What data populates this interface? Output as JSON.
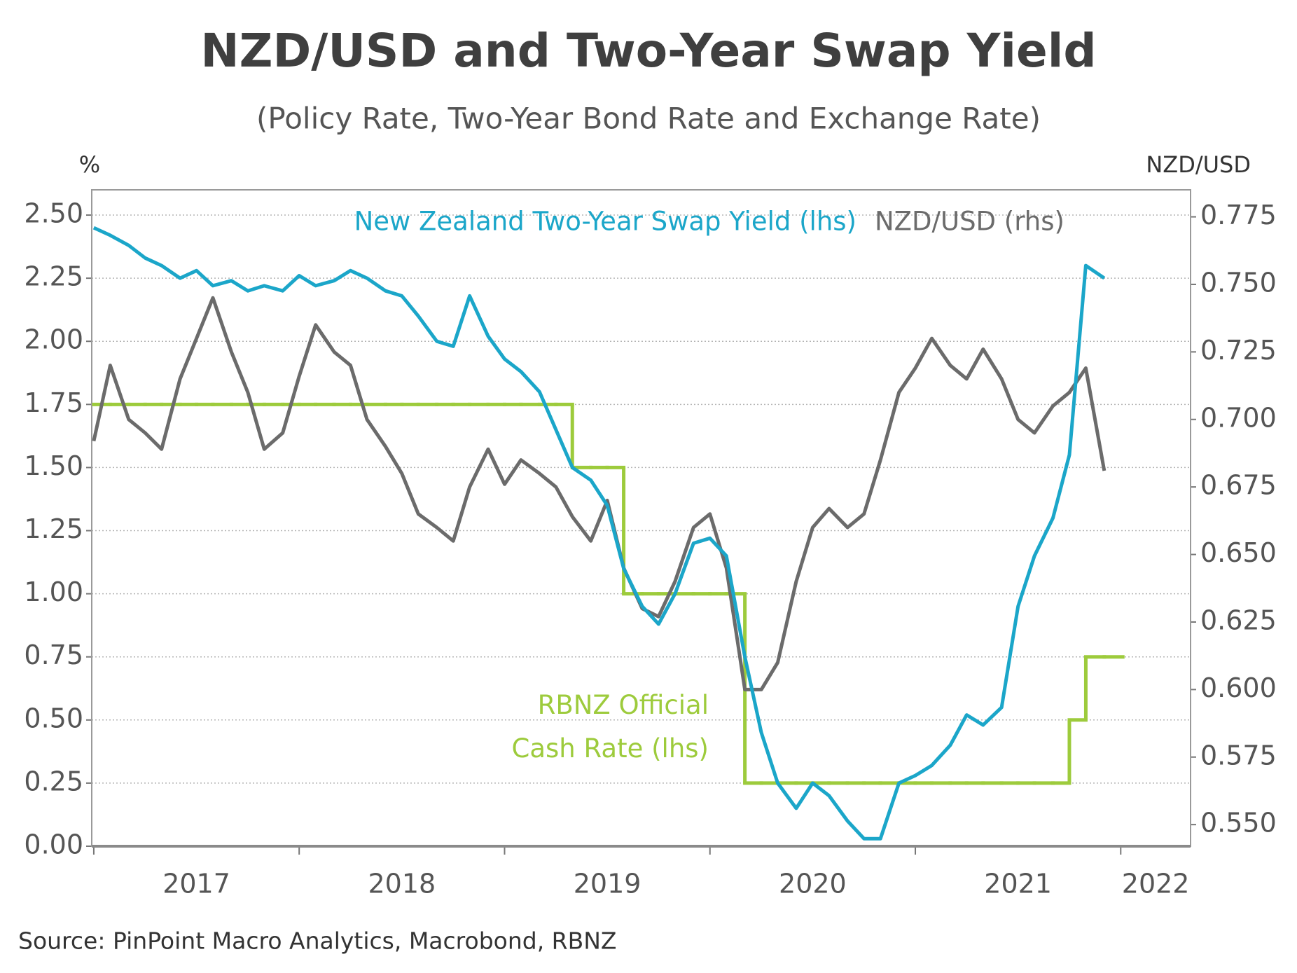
{
  "chart_data": {
    "type": "line",
    "title": "NZD/USD and Two-Year Swap Yield",
    "subtitle": "(Policy Rate, Two-Year Bond Rate and Exchange Rate)",
    "y_label": "%",
    "y2_label": "NZD/USD",
    "source": "Source: PinPoint Macro Analytics, Macrobond, RBNZ",
    "x": [
      2017,
      2017.08,
      2017.17,
      2017.25,
      2017.33,
      2017.42,
      2017.5,
      2017.58,
      2017.67,
      2017.75,
      2017.83,
      2017.92,
      2018,
      2018.08,
      2018.17,
      2018.25,
      2018.33,
      2018.42,
      2018.5,
      2018.58,
      2018.67,
      2018.75,
      2018.83,
      2018.92,
      2019,
      2019.08,
      2019.17,
      2019.25,
      2019.33,
      2019.42,
      2019.5,
      2019.58,
      2019.67,
      2019.75,
      2019.83,
      2019.92,
      2020,
      2020.08,
      2020.17,
      2020.25,
      2020.33,
      2020.42,
      2020.5,
      2020.58,
      2020.67,
      2020.75,
      2020.83,
      2020.92,
      2021,
      2021.08,
      2021.17,
      2021.25,
      2021.33,
      2021.42,
      2021.5,
      2021.58,
      2021.67,
      2021.75,
      2021.83,
      2021.92
    ],
    "xlim": [
      2016.99,
      2022.34
    ],
    "xticks": [
      2017,
      2018,
      2019,
      2020,
      2021,
      2022
    ],
    "ylim": [
      0,
      2.6
    ],
    "yticks": [
      {
        "value": 0,
        "label": "0.00"
      },
      0.25,
      {
        "value": 0.5,
        "label": "0.50"
      },
      0.75,
      {
        "value": 1,
        "label": "1.00"
      },
      1.25,
      {
        "value": 1.5,
        "label": "1.50"
      },
      1.75,
      {
        "value": 2,
        "label": "2.00"
      },
      2.25,
      {
        "value": 2.5,
        "label": "2.50"
      }
    ],
    "y2lim": [
      0.542,
      0.785
    ],
    "y2ticks": [
      {
        "value": 0.55,
        "label": "0.550"
      },
      0.575,
      {
        "value": 0.6,
        "label": "0.600"
      },
      0.625,
      {
        "value": 0.65,
        "label": "0.650"
      },
      0.675,
      {
        "value": 0.7,
        "label": "0.700"
      },
      0.725,
      {
        "value": 0.75,
        "label": "0.750"
      },
      0.775
    ],
    "grid": true,
    "series": [
      {
        "name": "RBNZ Official Cash Rate (lhs)",
        "color": "#9dcb3c",
        "drawstyle": "steps-post",
        "values": [
          1.75,
          1.75,
          1.75,
          1.75,
          1.75,
          1.75,
          1.75,
          1.75,
          1.75,
          1.75,
          1.75,
          1.75,
          1.75,
          1.75,
          1.75,
          1.75,
          1.75,
          1.75,
          1.75,
          1.75,
          1.75,
          1.75,
          1.75,
          1.75,
          1.75,
          1.75,
          1.75,
          1.75,
          1.5,
          1.5,
          1.5,
          1,
          1,
          1,
          1,
          1,
          1,
          1,
          0.25,
          0.25,
          0.25,
          0.25,
          0.25,
          0.25,
          0.25,
          0.25,
          0.25,
          0.25,
          0.25,
          0.25,
          0.25,
          0.25,
          0.25,
          0.25,
          0.25,
          0.25,
          0.25,
          0.5,
          0.75,
          0.75
        ]
      },
      {
        "name": "NZD/USD (rhs)",
        "color": "#6b6b6b",
        "axis": "y2",
        "values": [
          0.692,
          0.72,
          0.7,
          0.695,
          0.689,
          0.715,
          0.73,
          0.745,
          0.725,
          0.71,
          0.689,
          0.695,
          0.716,
          0.735,
          0.725,
          0.72,
          0.7,
          0.69,
          0.68,
          0.665,
          0.66,
          0.655,
          0.675,
          0.689,
          0.676,
          0.685,
          0.68,
          0.675,
          0.664,
          0.655,
          0.67,
          0.645,
          0.63,
          0.627,
          0.64,
          0.66,
          0.665,
          0.645,
          0.6,
          0.6,
          0.61,
          0.64,
          0.66,
          0.667,
          0.66,
          0.665,
          0.685,
          0.71,
          0.719,
          0.73,
          0.72,
          0.715,
          0.726,
          0.715,
          0.7,
          0.695,
          0.705,
          0.71,
          0.719,
          0.681
        ]
      },
      {
        "name": "New Zealand Two-Year Swap Yield (lhs)",
        "color": "#1ba6c9",
        "values": [
          2.45,
          2.42,
          2.38,
          2.33,
          2.3,
          2.25,
          2.28,
          2.22,
          2.24,
          2.2,
          2.22,
          2.2,
          2.26,
          2.22,
          2.24,
          2.28,
          2.25,
          2.2,
          2.18,
          2.1,
          2.0,
          1.98,
          2.18,
          2.02,
          1.93,
          1.88,
          1.8,
          1.65,
          1.5,
          1.45,
          1.35,
          1.1,
          0.95,
          0.88,
          1.0,
          1.2,
          1.22,
          1.15,
          0.75,
          0.45,
          0.25,
          0.15,
          0.25,
          0.2,
          0.1,
          0.03,
          0.03,
          0.25,
          0.28,
          0.32,
          0.4,
          0.52,
          0.48,
          0.55,
          0.95,
          1.15,
          1.3,
          1.55,
          2.3,
          2.25
        ]
      }
    ]
  }
}
